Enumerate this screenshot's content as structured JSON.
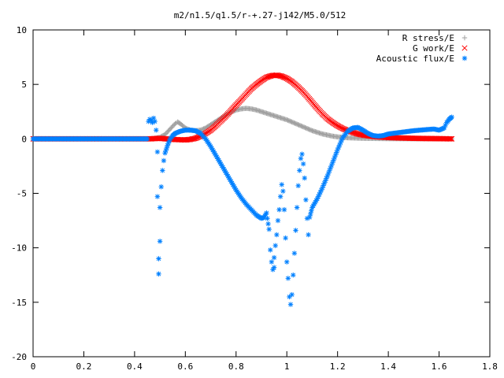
{
  "chart_data": {
    "type": "scatter",
    "title": "m2/n1.5/q1.5/r-+.27-j142/M5.0/512",
    "xlabel": "",
    "ylabel": "",
    "xlim": [
      0,
      1.8
    ],
    "ylim": [
      -20,
      10
    ],
    "x_ticks": [
      "0",
      "0.2",
      "0.4",
      "0.6",
      "0.8",
      "1",
      "1.2",
      "1.4",
      "1.6",
      "1.8"
    ],
    "y_ticks": [
      "10",
      "5",
      "0",
      "-5",
      "-10",
      "-15",
      "-20"
    ],
    "grid": false,
    "legend_position": "top-right",
    "series": [
      {
        "name": "R stress/E",
        "marker": "+",
        "color": "#a0a0a0",
        "points": [
          [
            0.0,
            0
          ],
          [
            0.1,
            0
          ],
          [
            0.2,
            0
          ],
          [
            0.3,
            0
          ],
          [
            0.4,
            0
          ],
          [
            0.46,
            0
          ],
          [
            0.48,
            0.05
          ],
          [
            0.5,
            0.15
          ],
          [
            0.52,
            0.4
          ],
          [
            0.54,
            0.9
          ],
          [
            0.56,
            1.4
          ],
          [
            0.57,
            1.55
          ],
          [
            0.58,
            1.4
          ],
          [
            0.6,
            1.0
          ],
          [
            0.62,
            0.8
          ],
          [
            0.64,
            0.75
          ],
          [
            0.66,
            0.8
          ],
          [
            0.68,
            1.0
          ],
          [
            0.7,
            1.3
          ],
          [
            0.72,
            1.6
          ],
          [
            0.74,
            1.9
          ],
          [
            0.76,
            2.2
          ],
          [
            0.78,
            2.45
          ],
          [
            0.8,
            2.65
          ],
          [
            0.82,
            2.75
          ],
          [
            0.84,
            2.8
          ],
          [
            0.86,
            2.75
          ],
          [
            0.88,
            2.65
          ],
          [
            0.9,
            2.5
          ],
          [
            0.92,
            2.35
          ],
          [
            0.94,
            2.2
          ],
          [
            0.96,
            2.05
          ],
          [
            0.98,
            1.9
          ],
          [
            1.0,
            1.75
          ],
          [
            1.02,
            1.55
          ],
          [
            1.04,
            1.35
          ],
          [
            1.06,
            1.15
          ],
          [
            1.08,
            0.95
          ],
          [
            1.1,
            0.75
          ],
          [
            1.12,
            0.6
          ],
          [
            1.14,
            0.45
          ],
          [
            1.16,
            0.35
          ],
          [
            1.18,
            0.25
          ],
          [
            1.2,
            0.18
          ],
          [
            1.24,
            0.1
          ],
          [
            1.3,
            0.05
          ],
          [
            1.4,
            0.02
          ],
          [
            1.5,
            0.01
          ],
          [
            1.65,
            0.0
          ]
        ]
      },
      {
        "name": "G work/E",
        "marker": "x",
        "color": "#ff0000",
        "points": [
          [
            0.0,
            0
          ],
          [
            0.1,
            0
          ],
          [
            0.2,
            0
          ],
          [
            0.3,
            0
          ],
          [
            0.4,
            0
          ],
          [
            0.46,
            0.0
          ],
          [
            0.5,
            0.05
          ],
          [
            0.55,
            -0.05
          ],
          [
            0.6,
            -0.1
          ],
          [
            0.62,
            -0.05
          ],
          [
            0.64,
            0.05
          ],
          [
            0.66,
            0.25
          ],
          [
            0.68,
            0.5
          ],
          [
            0.7,
            0.8
          ],
          [
            0.72,
            1.2
          ],
          [
            0.74,
            1.65
          ],
          [
            0.76,
            2.1
          ],
          [
            0.78,
            2.6
          ],
          [
            0.8,
            3.1
          ],
          [
            0.82,
            3.6
          ],
          [
            0.84,
            4.1
          ],
          [
            0.86,
            4.6
          ],
          [
            0.88,
            5.0
          ],
          [
            0.9,
            5.35
          ],
          [
            0.92,
            5.65
          ],
          [
            0.94,
            5.8
          ],
          [
            0.96,
            5.85
          ],
          [
            0.98,
            5.75
          ],
          [
            1.0,
            5.55
          ],
          [
            1.02,
            5.25
          ],
          [
            1.04,
            4.85
          ],
          [
            1.06,
            4.4
          ],
          [
            1.08,
            3.9
          ],
          [
            1.1,
            3.35
          ],
          [
            1.12,
            2.8
          ],
          [
            1.14,
            2.3
          ],
          [
            1.16,
            1.85
          ],
          [
            1.18,
            1.5
          ],
          [
            1.2,
            1.2
          ],
          [
            1.22,
            0.95
          ],
          [
            1.24,
            0.75
          ],
          [
            1.26,
            0.6
          ],
          [
            1.28,
            0.45
          ],
          [
            1.3,
            0.35
          ],
          [
            1.35,
            0.2
          ],
          [
            1.4,
            0.12
          ],
          [
            1.45,
            0.08
          ],
          [
            1.5,
            0.05
          ],
          [
            1.55,
            0.03
          ],
          [
            1.6,
            0.02
          ],
          [
            1.65,
            0.0
          ]
        ]
      },
      {
        "name": "Acoustic flux/E",
        "marker": "*",
        "color": "#0080ff",
        "points": [
          [
            0.0,
            0
          ],
          [
            0.05,
            0
          ],
          [
            0.1,
            0
          ],
          [
            0.15,
            0
          ],
          [
            0.2,
            0
          ],
          [
            0.25,
            0
          ],
          [
            0.3,
            0
          ],
          [
            0.35,
            0
          ],
          [
            0.4,
            0
          ],
          [
            0.45,
            0.0
          ],
          [
            0.455,
            1.6
          ],
          [
            0.46,
            1.8
          ],
          [
            0.465,
            1.7
          ],
          [
            0.47,
            1.5
          ],
          [
            0.475,
            1.9
          ],
          [
            0.48,
            1.6
          ],
          [
            0.485,
            0.8
          ],
          [
            0.49,
            -1.2
          ],
          [
            0.49,
            -5.3
          ],
          [
            0.495,
            -11.0
          ],
          [
            0.495,
            -12.4
          ],
          [
            0.5,
            -9.4
          ],
          [
            0.5,
            -6.3
          ],
          [
            0.505,
            -4.4
          ],
          [
            0.51,
            -2.9
          ],
          [
            0.515,
            -2.0
          ],
          [
            0.52,
            -1.3
          ],
          [
            0.53,
            -0.6
          ],
          [
            0.54,
            0.0
          ],
          [
            0.55,
            0.3
          ],
          [
            0.56,
            0.5
          ],
          [
            0.58,
            0.7
          ],
          [
            0.6,
            0.8
          ],
          [
            0.62,
            0.8
          ],
          [
            0.64,
            0.75
          ],
          [
            0.66,
            0.5
          ],
          [
            0.68,
            0.0
          ],
          [
            0.7,
            -0.7
          ],
          [
            0.72,
            -1.5
          ],
          [
            0.74,
            -2.3
          ],
          [
            0.76,
            -3.1
          ],
          [
            0.78,
            -3.9
          ],
          [
            0.8,
            -4.7
          ],
          [
            0.82,
            -5.4
          ],
          [
            0.84,
            -6.0
          ],
          [
            0.86,
            -6.5
          ],
          [
            0.88,
            -7.0
          ],
          [
            0.9,
            -7.3
          ],
          [
            0.91,
            -7.2
          ],
          [
            0.92,
            -6.8
          ],
          [
            0.93,
            -8.3
          ],
          [
            0.935,
            -10.2
          ],
          [
            0.94,
            -11.3
          ],
          [
            0.945,
            -12.0
          ],
          [
            0.95,
            -11.8
          ],
          [
            0.95,
            -10.9
          ],
          [
            0.955,
            -9.8
          ],
          [
            0.96,
            -8.8
          ],
          [
            0.965,
            -7.5
          ],
          [
            0.97,
            -6.5
          ],
          [
            0.975,
            -5.3
          ],
          [
            0.98,
            -4.2
          ],
          [
            0.985,
            -4.8
          ],
          [
            0.99,
            -6.5
          ],
          [
            0.995,
            -9.1
          ],
          [
            1.0,
            -11.3
          ],
          [
            1.005,
            -12.8
          ],
          [
            1.01,
            -14.5
          ],
          [
            1.015,
            -15.2
          ],
          [
            1.02,
            -14.3
          ],
          [
            1.025,
            -12.5
          ],
          [
            1.03,
            -10.5
          ],
          [
            1.035,
            -8.4
          ],
          [
            1.04,
            -6.3
          ],
          [
            1.045,
            -4.3
          ],
          [
            1.05,
            -2.9
          ],
          [
            1.055,
            -1.8
          ],
          [
            1.06,
            -1.4
          ],
          [
            1.065,
            -2.3
          ],
          [
            1.07,
            -3.6
          ],
          [
            1.075,
            -5.6
          ],
          [
            1.08,
            -7.3
          ],
          [
            1.085,
            -8.8
          ],
          [
            1.09,
            -7.2
          ],
          [
            1.1,
            -6.3
          ],
          [
            1.12,
            -5.5
          ],
          [
            1.14,
            -4.5
          ],
          [
            1.16,
            -3.4
          ],
          [
            1.18,
            -2.2
          ],
          [
            1.2,
            -1.0
          ],
          [
            1.22,
            0.1
          ],
          [
            1.24,
            0.7
          ],
          [
            1.26,
            1.0
          ],
          [
            1.28,
            1.05
          ],
          [
            1.3,
            0.8
          ],
          [
            1.32,
            0.5
          ],
          [
            1.34,
            0.3
          ],
          [
            1.36,
            0.25
          ],
          [
            1.38,
            0.3
          ],
          [
            1.4,
            0.45
          ],
          [
            1.45,
            0.6
          ],
          [
            1.5,
            0.75
          ],
          [
            1.55,
            0.85
          ],
          [
            1.58,
            0.9
          ],
          [
            1.6,
            0.8
          ],
          [
            1.62,
            1.0
          ],
          [
            1.63,
            1.5
          ],
          [
            1.64,
            1.8
          ],
          [
            1.65,
            2.0
          ]
        ]
      }
    ]
  }
}
